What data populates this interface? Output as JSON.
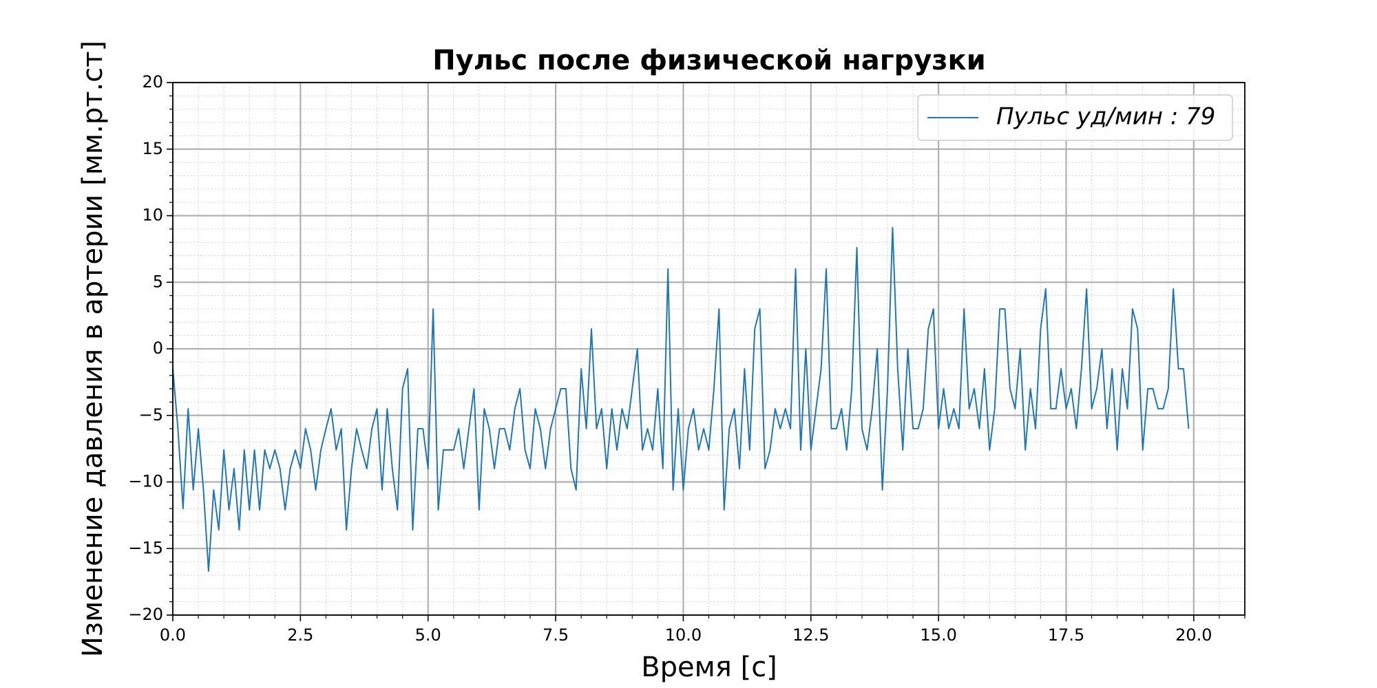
{
  "chart_data": {
    "type": "line",
    "title": "Пульс после физической нагрузки",
    "xlabel": "Время [с]",
    "ylabel": "Изменение давления в артерии [мм.рт.ст]",
    "x": [
      0.0,
      0.1,
      0.2,
      0.3,
      0.4,
      0.5,
      0.6,
      0.7,
      0.8,
      0.9,
      1.0,
      1.1,
      1.2,
      1.3,
      1.4,
      1.5,
      1.6,
      1.7,
      1.8,
      1.9,
      2.0,
      2.1,
      2.2,
      2.3,
      2.4,
      2.5,
      2.6,
      2.7,
      2.8,
      2.9,
      3.0,
      3.1,
      3.2,
      3.3,
      3.4,
      3.5,
      3.6,
      3.7,
      3.8,
      3.9,
      4.0,
      4.1,
      4.2,
      4.3,
      4.4,
      4.5,
      4.6,
      4.7,
      4.8,
      4.9,
      5.0,
      5.1,
      5.2,
      5.3,
      5.4,
      5.5,
      5.6,
      5.7,
      5.8,
      5.9,
      6.0,
      6.1,
      6.2,
      6.3,
      6.4,
      6.5,
      6.6,
      6.7,
      6.8,
      6.9,
      7.0,
      7.1,
      7.2,
      7.3,
      7.4,
      7.5,
      7.6,
      7.7,
      7.8,
      7.9,
      8.0,
      8.1,
      8.2,
      8.3,
      8.4,
      8.5,
      8.6,
      8.7,
      8.8,
      8.9,
      9.0,
      9.1,
      9.2,
      9.3,
      9.4,
      9.5,
      9.6,
      9.7,
      9.8,
      9.9,
      10.0,
      10.1,
      10.2,
      10.3,
      10.4,
      10.5,
      10.6,
      10.7,
      10.8,
      10.9,
      11.0,
      11.1,
      11.2,
      11.3,
      11.4,
      11.5,
      11.6,
      11.7,
      11.8,
      11.9,
      12.0,
      12.1,
      12.2,
      12.3,
      12.4,
      12.5,
      12.6,
      12.7,
      12.8,
      12.9,
      13.0,
      13.1,
      13.2,
      13.3,
      13.4,
      13.5,
      13.6,
      13.7,
      13.8,
      13.9,
      14.0,
      14.1,
      14.2,
      14.3,
      14.4,
      14.5,
      14.6,
      14.7,
      14.8,
      14.9,
      15.0,
      15.1,
      15.2,
      15.3,
      15.4,
      15.5,
      15.6,
      15.7,
      15.8,
      15.9,
      16.0,
      16.1,
      16.2,
      16.3,
      16.4,
      16.5,
      16.6,
      16.7,
      16.8,
      16.9,
      17.0,
      17.1,
      17.2,
      17.3,
      17.4,
      17.5,
      17.6,
      17.7,
      17.8,
      17.9,
      18.0,
      18.1,
      18.2,
      18.3,
      18.4,
      18.5,
      18.6,
      18.7,
      18.8,
      18.9,
      19.0,
      19.1,
      19.2,
      19.3,
      19.4,
      19.5,
      19.6,
      19.7,
      19.8,
      19.9
    ],
    "series": [
      {
        "name": "Пульс уд/мин : 79",
        "color": "#1f77b4",
        "values": [
          -1.5,
          -6,
          -12,
          -4.5,
          -10.6,
          -6,
          -10.6,
          -16.7,
          -10.6,
          -13.6,
          -7.6,
          -12.1,
          -9,
          -13.6,
          -7.6,
          -12.1,
          -7.6,
          -12.1,
          -7.6,
          -9,
          -7.6,
          -9,
          -12.1,
          -9,
          -7.6,
          -9,
          -6,
          -7.6,
          -10.6,
          -7.6,
          -6,
          -4.5,
          -7.6,
          -6,
          -13.6,
          -9,
          -6,
          -7.6,
          -9,
          -6,
          -4.5,
          -10.6,
          -4.5,
          -9,
          -12.1,
          -3,
          -1.5,
          -13.6,
          -6,
          -6,
          -9,
          3,
          -12.1,
          -7.6,
          -7.6,
          -7.6,
          -6,
          -9,
          -6,
          -3,
          -12.1,
          -4.5,
          -6,
          -9,
          -6,
          -6,
          -7.6,
          -4.5,
          -3,
          -7.6,
          -9,
          -4.5,
          -6,
          -9,
          -6,
          -4.5,
          -3,
          -3,
          -9,
          -10.6,
          -1.5,
          -6,
          1.5,
          -6,
          -4.5,
          -9,
          -4.5,
          -7.6,
          -4.5,
          -6,
          -3,
          0,
          -7.6,
          -6,
          -7.6,
          -3,
          -9,
          6,
          -10.6,
          -4.5,
          -10.6,
          -6,
          -4.5,
          -7.6,
          -6,
          -7.6,
          -3,
          3,
          -12.1,
          -6,
          -4.5,
          -9,
          -1.5,
          -7.6,
          1.5,
          3,
          -9,
          -7.6,
          -4.5,
          -6,
          -4.5,
          -6,
          6,
          -7.6,
          0,
          -7.6,
          -4.5,
          -1.5,
          6,
          -6,
          -6,
          -4.5,
          -7.6,
          -3,
          7.6,
          -6,
          -7.6,
          -4.5,
          0,
          -10.6,
          -3,
          9.1,
          -1.5,
          -7.6,
          0,
          -6,
          -6,
          -4.5,
          1.5,
          3,
          -6,
          -3,
          -6,
          -4.5,
          -6,
          3,
          -4.5,
          -3,
          -6,
          -1.5,
          -7.6,
          -4.5,
          3,
          3,
          -3,
          -4.5,
          0,
          -7.6,
          -3,
          -6,
          1.5,
          4.5,
          -4.5,
          -4.5,
          -1.5,
          -4.5,
          -3,
          -6,
          -1.5,
          4.5,
          -4.5,
          -3,
          0,
          -6,
          -1.5,
          -7.6,
          -1.5,
          -4.5,
          3,
          1.5,
          -7.6,
          -3,
          -3,
          -4.5,
          -4.5,
          -3,
          4.5,
          -1.5,
          -1.5,
          -6
        ]
      }
    ],
    "xlim": [
      0,
      21
    ],
    "ylim": [
      -20,
      20
    ],
    "xticks": [
      {
        "value": 0,
        "label": "0.0"
      },
      2.5,
      {
        "value": 5,
        "label": "5.0"
      },
      7.5,
      {
        "value": 10,
        "label": "10.0"
      },
      12.5,
      {
        "value": 15,
        "label": "15.0"
      },
      17.5,
      {
        "value": 20,
        "label": "20.0"
      }
    ],
    "yticks": [
      {
        "value": -20,
        "label": "−20"
      },
      {
        "value": -15,
        "label": "−15"
      },
      {
        "value": -10,
        "label": "−10"
      },
      {
        "value": -5,
        "label": "−5"
      },
      0,
      5,
      10,
      15,
      20
    ],
    "grid": true,
    "minor_step_x": 0.5,
    "minor_step_y": 1,
    "legend": "upper right"
  }
}
